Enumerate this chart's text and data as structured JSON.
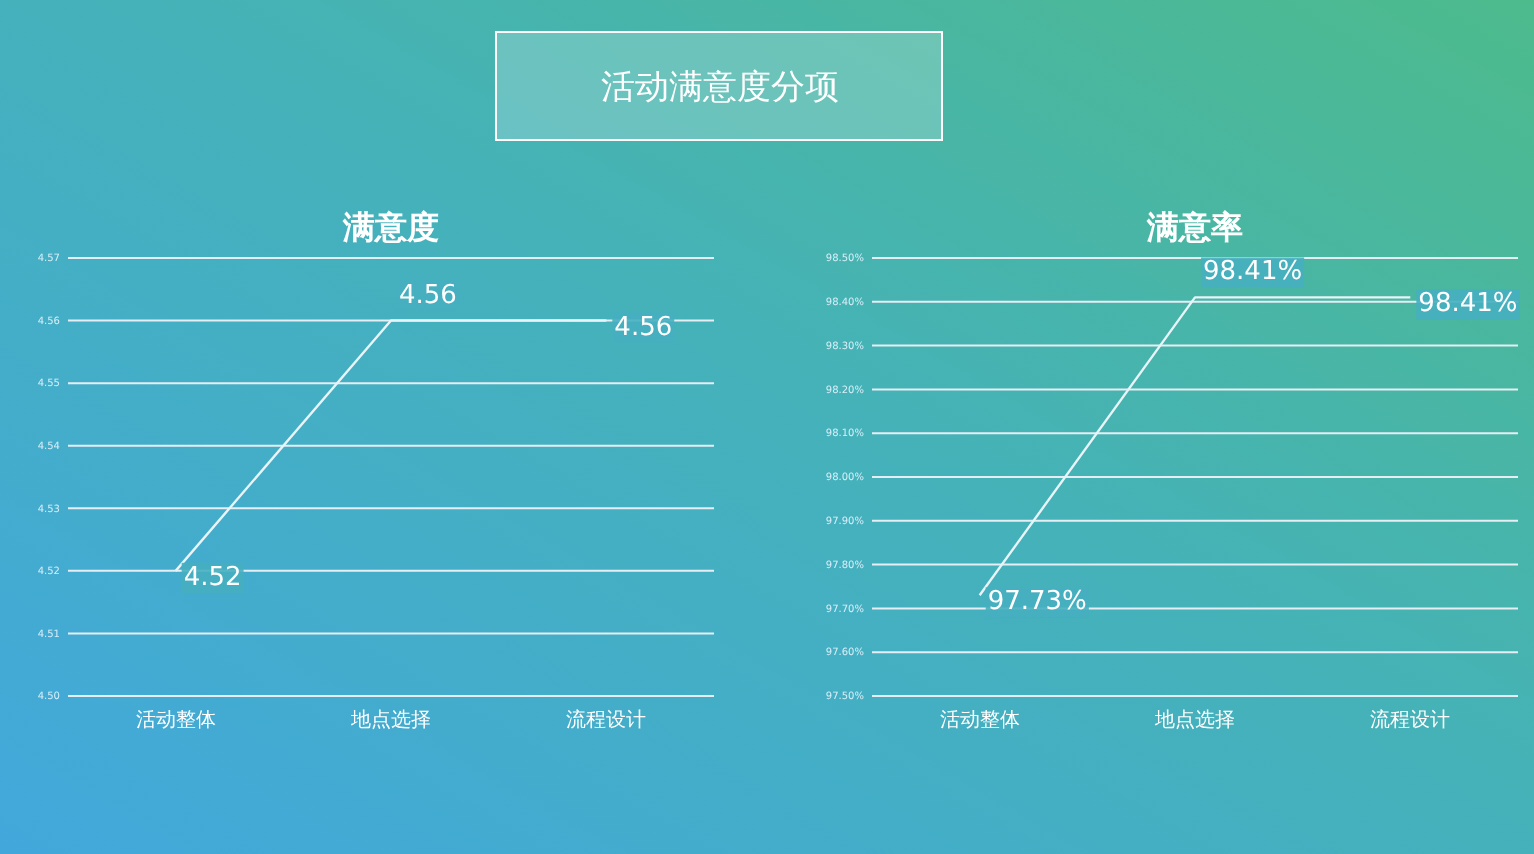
{
  "chart_data": [
    {
      "type": "other",
      "title": "活动满意度分项"
    },
    {
      "type": "line",
      "title": "满意度",
      "categories": [
        "活动整体",
        "地点选择",
        "流程设计"
      ],
      "series": [
        {
          "color": "#e8f4f8",
          "values": [
            4.52,
            4.56,
            4.56
          ],
          "value_labels": [
            "4.52",
            "4.56",
            "4.56"
          ]
        }
      ],
      "ylim": [
        4.5,
        4.57
      ],
      "yticks": [
        {
          "value": 4.5,
          "label": "4.50"
        },
        4.51,
        4.52,
        4.53,
        4.54,
        4.55,
        4.56,
        4.57
      ],
      "grid": "y",
      "marker": "none",
      "line_style": "solid"
    },
    {
      "type": "line",
      "title": "满意率",
      "categories": [
        "活动整体",
        "地点选择",
        "流程设计"
      ],
      "series": [
        {
          "color": "#e8f4f8",
          "values": [
            97.73,
            98.41,
            98.41
          ],
          "value_labels": [
            "97.73%",
            "98.41%",
            "98.41%"
          ]
        }
      ],
      "ylim": [
        97.5,
        98.5
      ],
      "yticks": [
        {
          "value": 97.5,
          "label": "97.50%"
        },
        {
          "value": 97.6,
          "label": "97.60%"
        },
        {
          "value": 97.7,
          "label": "97.70%"
        },
        {
          "value": 97.8,
          "label": "97.80%"
        },
        {
          "value": 97.9,
          "label": "97.90%"
        },
        {
          "value": 98.0,
          "label": "98.00%"
        },
        {
          "value": 98.1,
          "label": "98.10%"
        },
        {
          "value": 98.2,
          "label": "98.20%"
        },
        {
          "value": 98.3,
          "label": "98.30%"
        },
        {
          "value": 98.4,
          "label": "98.40%"
        },
        {
          "value": 98.5,
          "label": "98.50%"
        }
      ],
      "grid": "y",
      "marker": "none",
      "line_style": "solid"
    }
  ]
}
